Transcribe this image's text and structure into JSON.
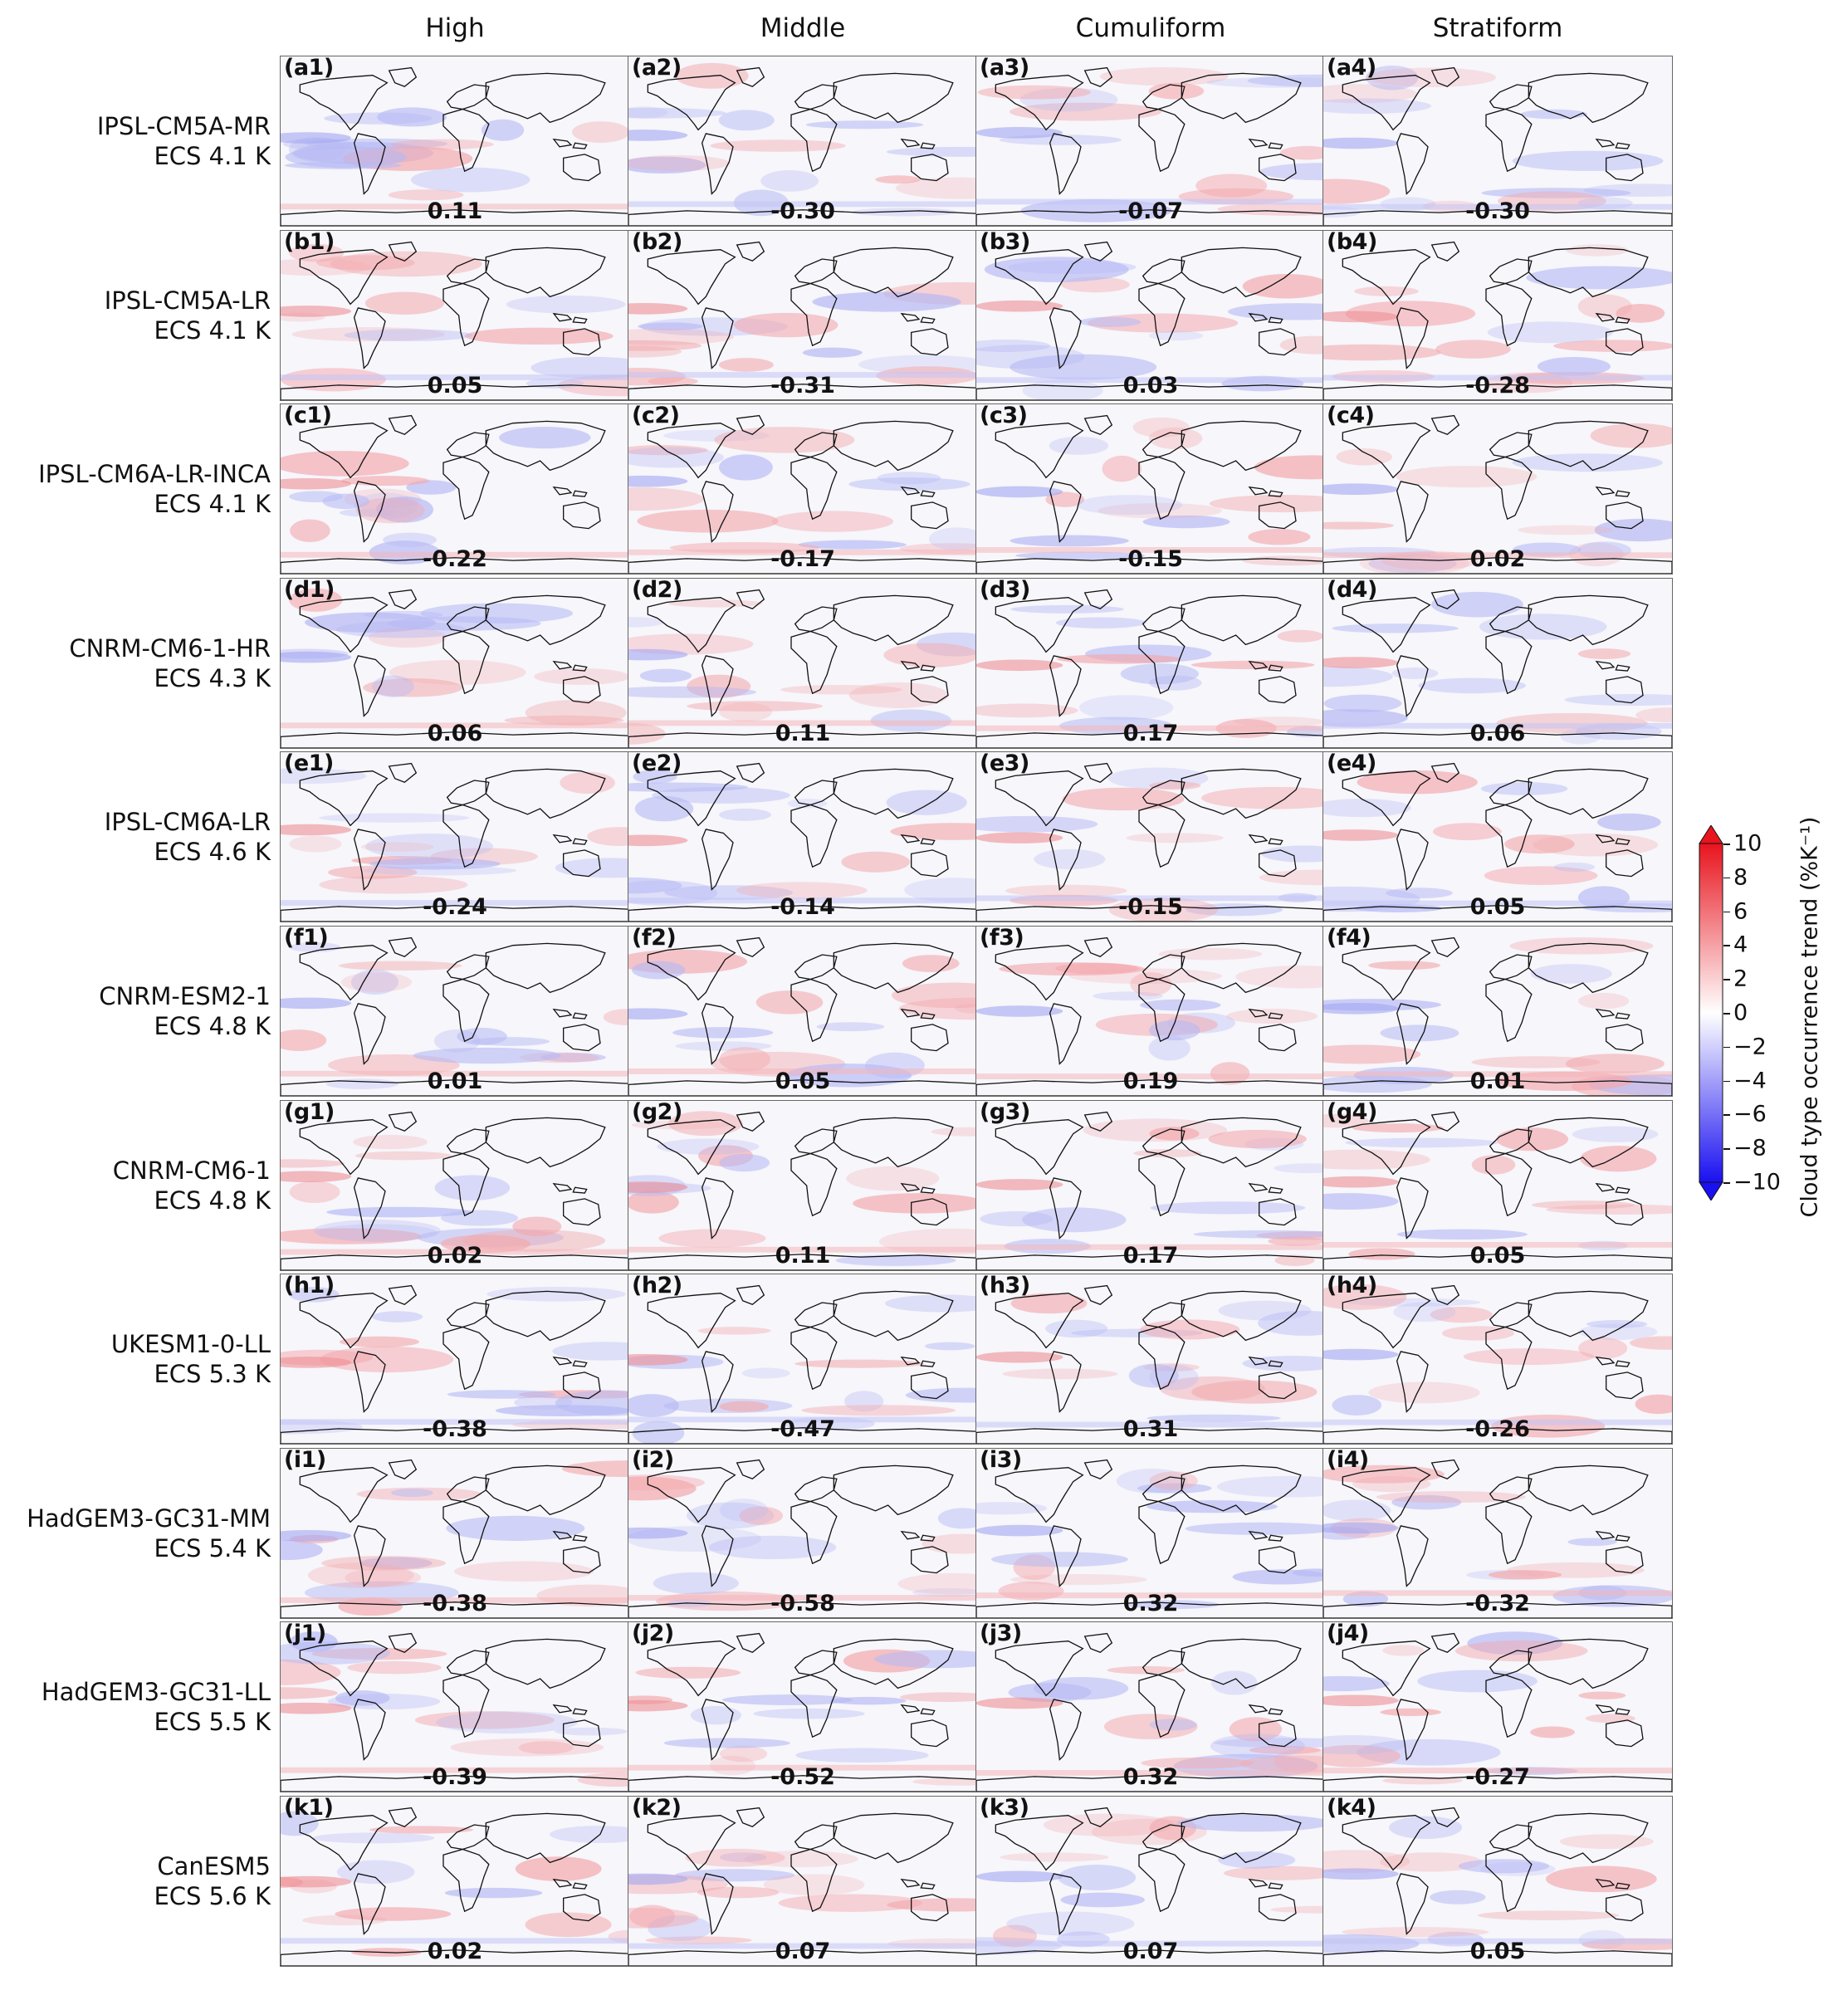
{
  "columns": [
    "High",
    "Middle",
    "Cumuliform",
    "Stratiform"
  ],
  "rows": [
    {
      "model": "IPSL-CM5A-MR",
      "ecs": "ECS 4.1 K",
      "panels": [
        {
          "label": "(a1)",
          "value": "0.11"
        },
        {
          "label": "(a2)",
          "value": "-0.30"
        },
        {
          "label": "(a3)",
          "value": "-0.07"
        },
        {
          "label": "(a4)",
          "value": "-0.30"
        }
      ]
    },
    {
      "model": "IPSL-CM5A-LR",
      "ecs": "ECS 4.1 K",
      "panels": [
        {
          "label": "(b1)",
          "value": "0.05"
        },
        {
          "label": "(b2)",
          "value": "-0.31"
        },
        {
          "label": "(b3)",
          "value": "0.03"
        },
        {
          "label": "(b4)",
          "value": "-0.28"
        }
      ]
    },
    {
      "model": "IPSL-CM6A-LR-INCA",
      "ecs": "ECS 4.1 K",
      "panels": [
        {
          "label": "(c1)",
          "value": "-0.22"
        },
        {
          "label": "(c2)",
          "value": "-0.17"
        },
        {
          "label": "(c3)",
          "value": "-0.15"
        },
        {
          "label": "(c4)",
          "value": "0.02"
        }
      ]
    },
    {
      "model": "CNRM-CM6-1-HR",
      "ecs": "ECS 4.3 K",
      "panels": [
        {
          "label": "(d1)",
          "value": "0.06"
        },
        {
          "label": "(d2)",
          "value": "0.11"
        },
        {
          "label": "(d3)",
          "value": "0.17"
        },
        {
          "label": "(d4)",
          "value": "0.06"
        }
      ]
    },
    {
      "model": "IPSL-CM6A-LR",
      "ecs": "ECS 4.6 K",
      "panels": [
        {
          "label": "(e1)",
          "value": "-0.24"
        },
        {
          "label": "(e2)",
          "value": "-0.14"
        },
        {
          "label": "(e3)",
          "value": "-0.15"
        },
        {
          "label": "(e4)",
          "value": "0.05"
        }
      ]
    },
    {
      "model": "CNRM-ESM2-1",
      "ecs": "ECS 4.8 K",
      "panels": [
        {
          "label": "(f1)",
          "value": "0.01"
        },
        {
          "label": "(f2)",
          "value": "0.05"
        },
        {
          "label": "(f3)",
          "value": "0.19"
        },
        {
          "label": "(f4)",
          "value": "0.01"
        }
      ]
    },
    {
      "model": "CNRM-CM6-1",
      "ecs": "ECS 4.8 K",
      "panels": [
        {
          "label": "(g1)",
          "value": "0.02"
        },
        {
          "label": "(g2)",
          "value": "0.11"
        },
        {
          "label": "(g3)",
          "value": "0.17"
        },
        {
          "label": "(g4)",
          "value": "0.05"
        }
      ]
    },
    {
      "model": "UKESM1-0-LL",
      "ecs": "ECS 5.3 K",
      "panels": [
        {
          "label": "(h1)",
          "value": "-0.38"
        },
        {
          "label": "(h2)",
          "value": "-0.47"
        },
        {
          "label": "(h3)",
          "value": "0.31"
        },
        {
          "label": "(h4)",
          "value": "-0.26"
        }
      ]
    },
    {
      "model": "HadGEM3-GC31-MM",
      "ecs": "ECS 5.4 K",
      "panels": [
        {
          "label": "(i1)",
          "value": "-0.38"
        },
        {
          "label": "(i2)",
          "value": "-0.58"
        },
        {
          "label": "(i3)",
          "value": "0.32"
        },
        {
          "label": "(i4)",
          "value": "-0.32"
        }
      ]
    },
    {
      "model": "HadGEM3-GC31-LL",
      "ecs": "ECS 5.5 K",
      "panels": [
        {
          "label": "(j1)",
          "value": "-0.39"
        },
        {
          "label": "(j2)",
          "value": "-0.52"
        },
        {
          "label": "(j3)",
          "value": "0.32"
        },
        {
          "label": "(j4)",
          "value": "-0.27"
        }
      ]
    },
    {
      "model": "CanESM5",
      "ecs": "ECS 5.6 K",
      "panels": [
        {
          "label": "(k1)",
          "value": "0.02"
        },
        {
          "label": "(k2)",
          "value": "0.07"
        },
        {
          "label": "(k3)",
          "value": "0.07"
        },
        {
          "label": "(k4)",
          "value": "0.05"
        }
      ]
    }
  ],
  "colorbar": {
    "title": "Cloud type occurrence trend (%K⁻¹)",
    "ticks": [
      "10",
      "8",
      "6",
      "4",
      "2",
      "0",
      "−2",
      "−4",
      "−6",
      "−8",
      "−10"
    ],
    "min": -10,
    "max": 10,
    "colors": {
      "high": "#e8141e",
      "mid": "#ffffff",
      "low": "#1a10f0"
    }
  }
}
